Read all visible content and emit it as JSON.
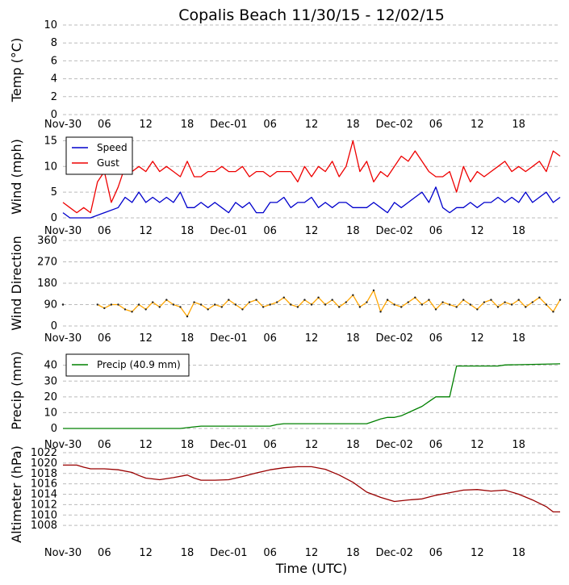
{
  "chart_data": {
    "title": "Copalis Beach 11/30/15 - 12/02/15",
    "xlabel": "Time (UTC)",
    "x_tick_labels": [
      "Nov-30",
      "06",
      "12",
      "18",
      "Dec-01",
      "06",
      "12",
      "18",
      "Dec-02",
      "06",
      "12",
      "18"
    ],
    "x_range_hours": [
      0,
      72
    ],
    "panels": [
      {
        "id": "temp",
        "type": "line",
        "ylabel": "Temp (°C)",
        "ylim": [
          0,
          10
        ],
        "yticks": [
          0,
          2,
          4,
          6,
          8,
          10
        ],
        "grid": true,
        "series": []
      },
      {
        "id": "wind",
        "type": "line",
        "ylabel": "Wind (mph)",
        "ylim": [
          0,
          16
        ],
        "yticks": [
          0,
          5,
          10,
          15
        ],
        "grid": true,
        "legend": "top-left",
        "series": [
          {
            "name": "Speed",
            "color": "#0000cc",
            "x": [
              0,
              1,
              2,
              4,
              6,
              8,
              9,
              10,
              11,
              12,
              13,
              14,
              15,
              16,
              17,
              18,
              19,
              20,
              21,
              22,
              23,
              24,
              25,
              26,
              27,
              28,
              29,
              30,
              31,
              32,
              33,
              34,
              35,
              36,
              37,
              38,
              39,
              40,
              41,
              42,
              43,
              44,
              45,
              46,
              47,
              48,
              49,
              50,
              51,
              52,
              53,
              54,
              55,
              56,
              57,
              58,
              59,
              60,
              61,
              62,
              63,
              64,
              65,
              66,
              67,
              68,
              69,
              70,
              71,
              72
            ],
            "y": [
              1,
              0,
              0,
              0,
              1,
              2,
              4,
              3,
              5,
              3,
              4,
              3,
              4,
              3,
              5,
              2,
              2,
              3,
              2,
              3,
              2,
              1,
              3,
              2,
              3,
              1,
              1,
              3,
              3,
              4,
              2,
              3,
              3,
              4,
              2,
              3,
              2,
              3,
              3,
              2,
              2,
              2,
              3,
              2,
              1,
              3,
              2,
              3,
              4,
              5,
              3,
              6,
              2,
              1,
              2,
              2,
              3,
              2,
              3,
              3,
              4,
              3,
              4,
              3,
              5,
              3,
              4,
              5,
              3,
              4
            ]
          },
          {
            "name": "Gust",
            "color": "#ee0000",
            "x": [
              0,
              1,
              2,
              3,
              4,
              5,
              6,
              7,
              8,
              9,
              10,
              11,
              12,
              13,
              14,
              15,
              16,
              17,
              18,
              19,
              20,
              21,
              22,
              23,
              24,
              25,
              26,
              27,
              28,
              29,
              30,
              31,
              32,
              33,
              34,
              35,
              36,
              37,
              38,
              39,
              40,
              41,
              42,
              43,
              44,
              45,
              46,
              47,
              48,
              49,
              50,
              51,
              52,
              53,
              54,
              55,
              56,
              57,
              58,
              59,
              60,
              61,
              62,
              63,
              64,
              65,
              66,
              67,
              68,
              69,
              70,
              71,
              72
            ],
            "y": [
              3,
              2,
              1,
              2,
              1,
              7,
              9,
              3,
              6,
              10,
              9,
              10,
              9,
              11,
              9,
              10,
              9,
              8,
              11,
              8,
              8,
              9,
              9,
              10,
              9,
              9,
              10,
              8,
              9,
              9,
              8,
              9,
              9,
              9,
              7,
              10,
              8,
              10,
              9,
              11,
              8,
              10,
              15,
              9,
              11,
              7,
              9,
              8,
              10,
              12,
              11,
              13,
              11,
              9,
              8,
              8,
              9,
              5,
              10,
              7,
              9,
              8,
              9,
              10,
              11,
              9,
              10,
              9,
              10,
              11,
              9,
              13,
              12
            ]
          }
        ]
      },
      {
        "id": "wind_direction",
        "type": "line",
        "ylabel": "Wind Direction",
        "ylim": [
          0,
          360
        ],
        "yticks": [
          0,
          90,
          180,
          270,
          360
        ],
        "grid": true,
        "series": [
          {
            "name": "",
            "color": "#ffa500",
            "x": [
              0,
              4,
              5,
              6,
              7,
              8,
              9,
              10,
              11,
              12,
              13,
              14,
              15,
              16,
              17,
              18,
              19,
              20,
              21,
              22,
              23,
              24,
              25,
              26,
              27,
              28,
              29,
              30,
              31,
              32,
              33,
              34,
              35,
              36,
              37,
              38,
              39,
              40,
              41,
              42,
              43,
              44,
              45,
              46,
              47,
              48,
              49,
              50,
              51,
              52,
              53,
              54,
              55,
              56,
              57,
              58,
              59,
              60,
              61,
              62,
              63,
              64,
              65,
              66,
              67,
              68,
              69,
              70,
              71,
              72
            ],
            "y": [
              90,
              null,
              90,
              75,
              90,
              90,
              70,
              60,
              90,
              70,
              100,
              80,
              110,
              90,
              80,
              40,
              100,
              90,
              70,
              90,
              80,
              110,
              90,
              70,
              100,
              110,
              80,
              90,
              100,
              120,
              90,
              80,
              110,
              90,
              120,
              90,
              110,
              80,
              100,
              130,
              80,
              100,
              150,
              60,
              110,
              90,
              80,
              100,
              120,
              90,
              110,
              70,
              100,
              90,
              80,
              110,
              90,
              70,
              100,
              110,
              80,
              100,
              90,
              110,
              80,
              100,
              120,
              90,
              60,
              110
            ]
          }
        ]
      },
      {
        "id": "precip",
        "type": "line",
        "ylabel": "Precip (mm)",
        "ylim": [
          0,
          48
        ],
        "yticks": [
          0,
          10,
          20,
          30,
          40
        ],
        "grid": true,
        "legend": "top-left",
        "series": [
          {
            "name": "Precip (40.9 mm)",
            "color": "#008000",
            "x": [
              0,
              17,
              18,
              19,
              20,
              30,
              31,
              32,
              40,
              44,
              45,
              46,
              47,
              48,
              49,
              50,
              51,
              52,
              53,
              54,
              55,
              56,
              57,
              63,
              64,
              72
            ],
            "y": [
              0,
              0,
              0.5,
              1,
              1.5,
              1.5,
              2.5,
              3,
              3,
              3,
              4.5,
              6,
              7,
              7,
              8,
              10,
              12,
              14,
              17,
              20,
              20,
              20,
              39.5,
              39.5,
              40.2,
              40.9
            ]
          }
        ]
      },
      {
        "id": "altimeter",
        "type": "line",
        "ylabel": "Altimeter (hPa)",
        "ylim": [
          1006,
          1022
        ],
        "yticks": [
          1008,
          1010,
          1012,
          1014,
          1016,
          1018,
          1020,
          1022
        ],
        "grid": true,
        "series": [
          {
            "name": "",
            "color": "#990000",
            "x": [
              0,
              2,
              3,
              4,
              6,
              8,
              10,
              11,
              12,
              14,
              16,
              18,
              19,
              20,
              22,
              24,
              26,
              28,
              30,
              32,
              34,
              36,
              38,
              40,
              42,
              44,
              46,
              48,
              50,
              52,
              54,
              56,
              58,
              60,
              62,
              64,
              66,
              68,
              70,
              71,
              72
            ],
            "y": [
              1019.6,
              1019.6,
              1019.2,
              1018.9,
              1018.9,
              1018.7,
              1018.2,
              1017.6,
              1017.1,
              1016.8,
              1017.2,
              1017.7,
              1017.1,
              1016.7,
              1016.7,
              1016.8,
              1017.4,
              1018.1,
              1018.7,
              1019.1,
              1019.3,
              1019.3,
              1018.8,
              1017.7,
              1016.3,
              1014.4,
              1013.4,
              1012.6,
              1012.9,
              1013.1,
              1013.8,
              1014.3,
              1014.8,
              1014.9,
              1014.6,
              1014.8,
              1014.0,
              1012.9,
              1011.6,
              1010.6,
              1010.6
            ]
          }
        ]
      }
    ]
  }
}
